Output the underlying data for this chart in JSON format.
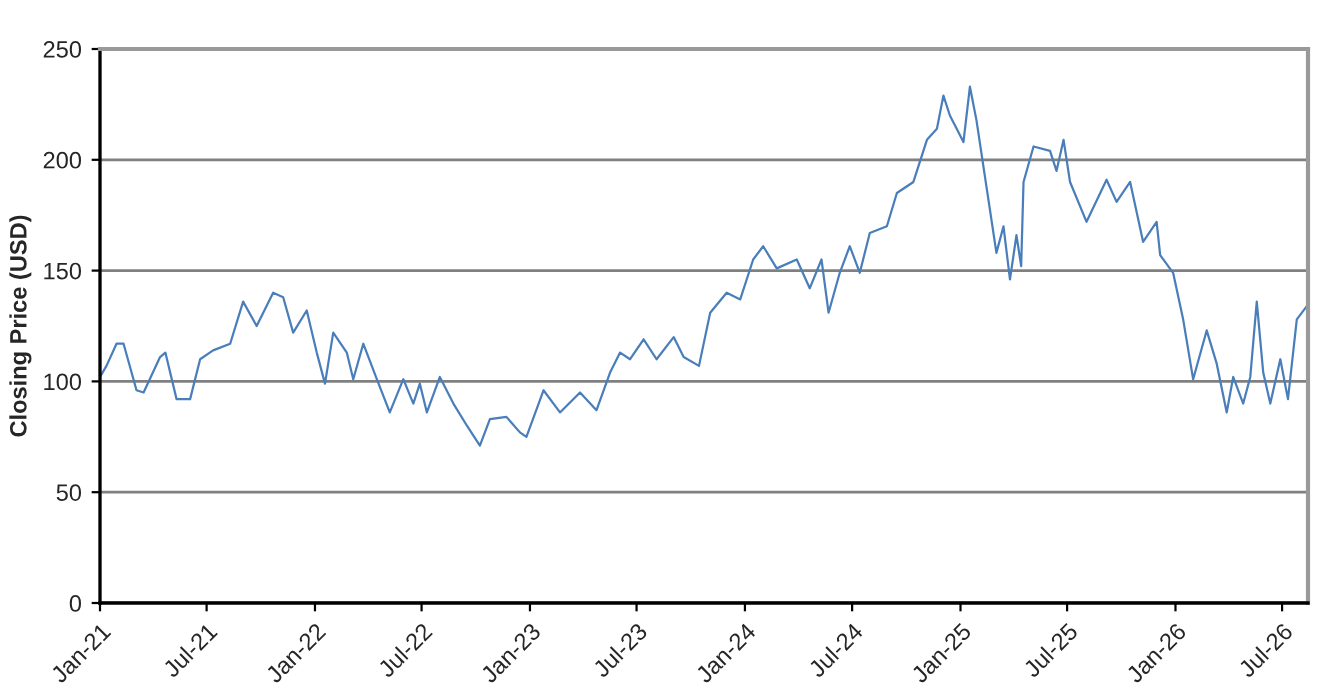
{
  "chart_data": {
    "type": "line",
    "ylabel": "Closing Price (USD)",
    "x": [
      "2021-01-01",
      "2021-01-12",
      "2021-01-29",
      "2021-02-10",
      "2021-03-04",
      "2021-03-16",
      "2021-04-13",
      "2021-04-22",
      "2021-05-11",
      "2021-06-03",
      "2021-06-20",
      "2021-07-12",
      "2021-08-10",
      "2021-09-01",
      "2021-09-24",
      "2021-10-22",
      "2021-11-08",
      "2021-11-25",
      "2021-12-18",
      "2022-01-04",
      "2022-01-18",
      "2022-02-01",
      "2022-02-24",
      "2022-03-07",
      "2022-03-24",
      "2022-04-16",
      "2022-05-08",
      "2022-05-31",
      "2022-06-17",
      "2022-06-28",
      "2022-07-10",
      "2022-08-01",
      "2022-08-24",
      "2022-09-16",
      "2022-10-08",
      "2022-10-25",
      "2022-11-22",
      "2022-12-15",
      "2022-12-26",
      "2023-01-24",
      "2023-02-21",
      "2023-03-27",
      "2023-04-24",
      "2023-05-17",
      "2023-06-03",
      "2023-06-20",
      "2023-07-13",
      "2023-08-04",
      "2023-09-02",
      "2023-09-19",
      "2023-10-15",
      "2023-11-03",
      "2023-12-01",
      "2023-12-24",
      "2024-01-15",
      "2024-02-01",
      "2024-02-24",
      "2024-03-29",
      "2024-04-20",
      "2024-05-10",
      "2024-05-22",
      "2024-06-10",
      "2024-06-27",
      "2024-07-14",
      "2024-07-31",
      "2024-08-29",
      "2024-09-15",
      "2024-10-13",
      "2024-11-05",
      "2024-11-22",
      "2024-12-03",
      "2024-12-14",
      "2025-01-06",
      "2025-01-17",
      "2025-01-28",
      "2025-02-14",
      "2025-03-03",
      "2025-03-15",
      "2025-03-26",
      "2025-04-06",
      "2025-04-14",
      "2025-04-18",
      "2025-05-05",
      "2025-06-02",
      "2025-06-13",
      "2025-06-25",
      "2025-07-06",
      "2025-08-03",
      "2025-09-06",
      "2025-09-23",
      "2025-10-16",
      "2025-11-07",
      "2025-11-30",
      "2025-12-06",
      "2025-12-28",
      "2026-01-14",
      "2026-01-31",
      "2026-02-23",
      "2026-03-12",
      "2026-03-29",
      "2026-04-09",
      "2026-04-26",
      "2026-05-08",
      "2026-05-19",
      "2026-05-30",
      "2026-06-11",
      "2026-06-28",
      "2026-07-11",
      "2026-07-26",
      "2026-08-12"
    ],
    "series": [
      {
        "color": "#4a7ebb",
        "values": [
          102,
          107,
          117,
          117,
          96,
          95,
          111,
          113,
          92,
          92,
          110,
          114,
          117,
          136,
          125,
          140,
          138,
          122,
          132,
          113,
          99,
          122,
          113,
          101,
          117,
          101,
          86,
          101,
          90,
          99,
          86,
          102,
          90,
          80,
          71,
          83,
          84,
          77,
          75,
          96,
          86,
          95,
          87,
          104,
          113,
          110,
          119,
          110,
          120,
          111,
          107,
          131,
          140,
          137,
          155,
          161,
          151,
          155,
          142,
          155,
          131,
          149,
          161,
          149,
          167,
          170,
          185,
          190,
          209,
          214,
          229,
          220,
          208,
          233,
          218,
          188,
          158,
          170,
          146,
          166,
          152,
          190,
          206,
          204,
          195,
          209,
          190,
          172,
          191,
          181,
          190,
          163,
          172,
          157,
          149,
          128,
          101,
          123,
          108,
          86,
          102,
          90,
          102,
          136,
          104,
          90,
          110,
          92,
          128,
          134
        ]
      }
    ],
    "xlim": [
      "2021-01-01",
      "2026-08-14"
    ],
    "xticks": [
      {
        "value": "2021-01-01",
        "label": "Jan-21"
      },
      {
        "value": "2021-07-01",
        "label": "Jul-21"
      },
      {
        "value": "2022-01-01",
        "label": "Jan-22"
      },
      {
        "value": "2022-07-01",
        "label": "Jul-22"
      },
      {
        "value": "2023-01-01",
        "label": "Jan-23"
      },
      {
        "value": "2023-07-01",
        "label": "Jul-23"
      },
      {
        "value": "2024-01-01",
        "label": "Jan-24"
      },
      {
        "value": "2024-07-01",
        "label": "Jul-24"
      },
      {
        "value": "2025-01-01",
        "label": "Jan-25"
      },
      {
        "value": "2025-07-01",
        "label": "Jul-25"
      },
      {
        "value": "2026-01-01",
        "label": "Jan-26"
      },
      {
        "value": "2026-07-01",
        "label": "Jul-26"
      }
    ],
    "ylim": [
      0,
      250
    ],
    "yticks": [
      0,
      50,
      100,
      150,
      200,
      250
    ],
    "grid": "y",
    "legend": false,
    "marker": "none",
    "line_style": "solid"
  }
}
